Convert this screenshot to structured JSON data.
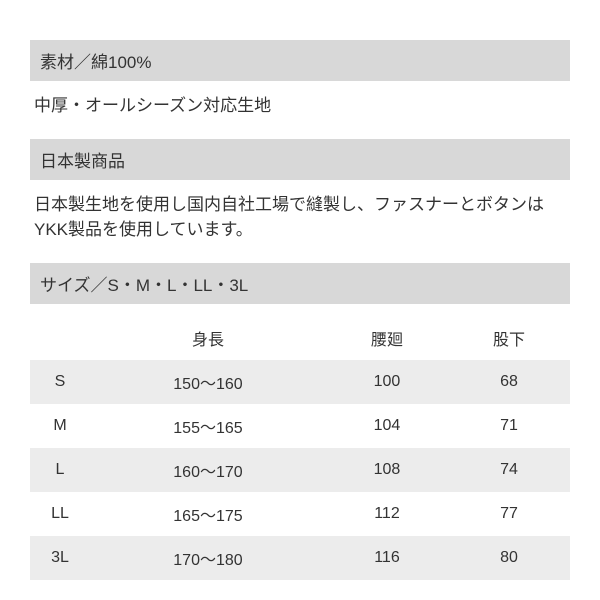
{
  "material": {
    "header": "素材／綿100%",
    "text": "中厚・オールシーズン対応生地"
  },
  "madein": {
    "header": "日本製商品",
    "text": "日本製生地を使用し国内自社工場で縫製し、ファスナーとボタンはYKK製品を使用しています。"
  },
  "size": {
    "header": "サイズ／S・M・L・LL・3L",
    "columns": [
      "",
      "身長",
      "腰廻",
      "股下"
    ],
    "rows": [
      [
        "S",
        "150～160",
        "100",
        "68"
      ],
      [
        "M",
        "155～165",
        "104",
        "71"
      ],
      [
        "L",
        "160～170",
        "108",
        "74"
      ],
      [
        "LL",
        "165～175",
        "112",
        "77"
      ],
      [
        "3L",
        "170～180",
        "116",
        "80"
      ]
    ],
    "header_bg": "#d8d8d8",
    "row_odd_bg": "#ececec",
    "row_even_bg": "#ffffff",
    "text_color": "#333333",
    "fontsize": 16
  }
}
